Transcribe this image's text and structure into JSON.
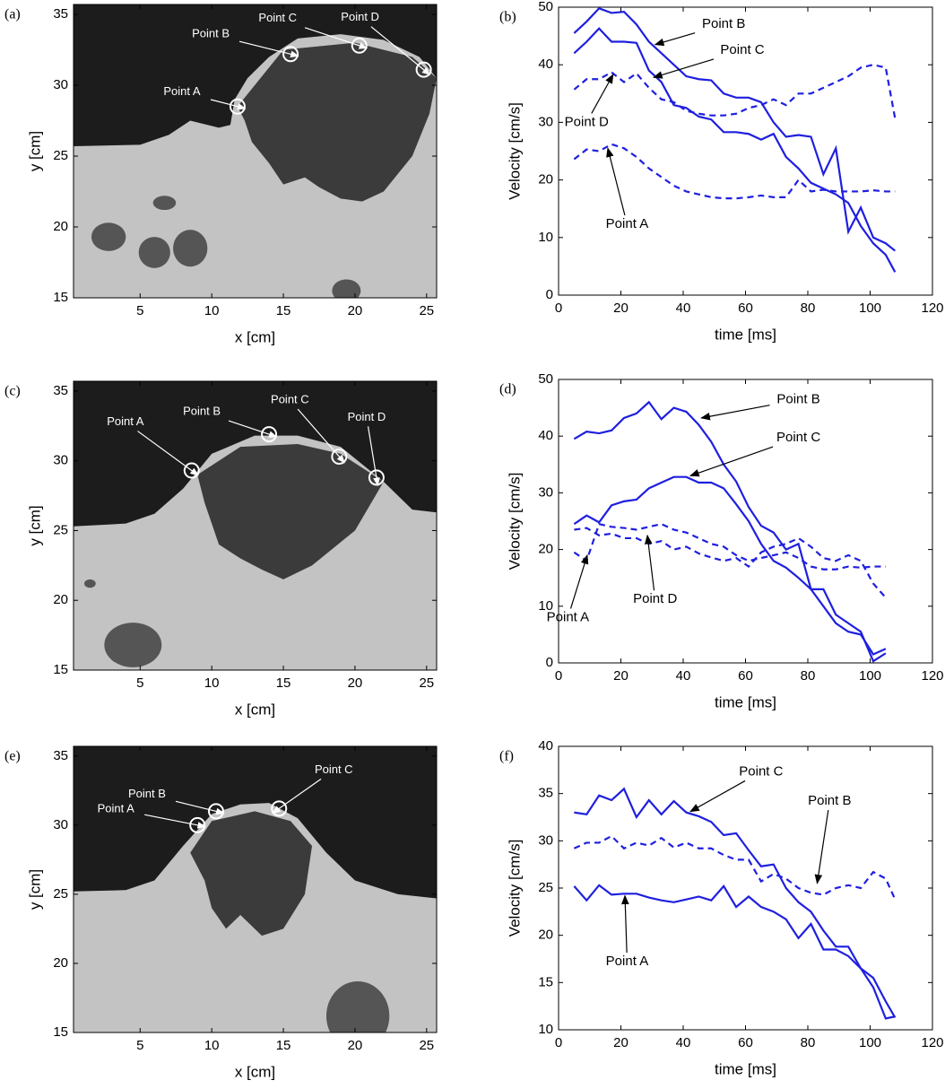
{
  "chart_data": [
    {
      "type": "image",
      "panel_label": "(a)",
      "xlabel": "x [cm]",
      "ylabel": "y [cm]",
      "xlim": [
        0.35,
        25.7
      ],
      "ylim": [
        15,
        35.7
      ],
      "xticks": [
        5,
        10,
        15,
        20,
        25
      ],
      "yticks": [
        15,
        20,
        25,
        30,
        35
      ],
      "markers": [
        {
          "label": "Point A",
          "x": 11.8,
          "y": 28.5
        },
        {
          "label": "Point B",
          "x": 15.5,
          "y": 32.2
        },
        {
          "label": "Point C",
          "x": 20.3,
          "y": 32.8
        },
        {
          "label": "Point D",
          "x": 24.8,
          "y": 31.1
        }
      ]
    },
    {
      "type": "line",
      "panel_label": "(b)",
      "xlabel": "time [ms]",
      "ylabel": "Velocity [cm/s]",
      "xlim": [
        0,
        120
      ],
      "ylim": [
        0,
        50
      ],
      "xticks": [
        0,
        20,
        40,
        60,
        80,
        100,
        120
      ],
      "yticks": [
        0,
        10,
        20,
        30,
        40,
        50
      ],
      "x": [
        5,
        9,
        13,
        17,
        21,
        25,
        29,
        33,
        37,
        41,
        45,
        49,
        53,
        57,
        61,
        65,
        69,
        73,
        77,
        81,
        85,
        89,
        93,
        97,
        101,
        105,
        108
      ],
      "series": [
        {
          "name": "Point B",
          "color": "#1f1fe0",
          "linestyle": "solid",
          "values": [
            45.5,
            47.5,
            49.8,
            49.0,
            49.2,
            47.0,
            44.0,
            42.0,
            40.0,
            38.0,
            37.5,
            37.3,
            35.0,
            34.3,
            34.3,
            33.5,
            30.0,
            27.5,
            27.8,
            27.5,
            21.0,
            25.5,
            11.0,
            15.2,
            10.0,
            9.0,
            7.7
          ]
        },
        {
          "name": "Point C",
          "color": "#1f1fe0",
          "linestyle": "solid",
          "values": [
            42,
            44,
            46.3,
            44,
            44,
            43.8,
            39,
            37,
            33,
            32.5,
            31,
            30.5,
            28.3,
            28.3,
            28,
            27,
            28,
            24,
            22,
            19.5,
            18.5,
            17.5,
            16,
            12,
            9,
            7,
            4
          ]
        },
        {
          "name": "Point D",
          "color": "#1f1fe0",
          "linestyle": "dashed",
          "values": [
            35.7,
            37.5,
            37.5,
            38.7,
            37,
            38.5,
            36,
            34,
            33.5,
            32,
            31.5,
            31.2,
            31.2,
            31.5,
            32.5,
            33,
            34,
            33,
            35,
            35,
            36,
            37,
            38,
            39.5,
            40,
            39.5,
            30.7
          ]
        },
        {
          "name": "Point A",
          "color": "#1f1fe0",
          "linestyle": "dashed",
          "values": [
            23.6,
            25.3,
            25,
            26.2,
            25.5,
            24,
            22,
            20.5,
            19,
            18,
            17.5,
            17,
            16.8,
            16.8,
            17,
            17.3,
            17,
            17,
            20,
            18,
            18.3,
            18,
            18,
            18,
            18.2,
            18,
            18
          ]
        }
      ]
    },
    {
      "type": "image",
      "panel_label": "(c)",
      "xlabel": "x [cm]",
      "ylabel": "y [cm]",
      "xlim": [
        0.35,
        25.7
      ],
      "ylim": [
        15,
        35.7
      ],
      "xticks": [
        5,
        10,
        15,
        20,
        25
      ],
      "yticks": [
        15,
        20,
        25,
        30,
        35
      ],
      "markers": [
        {
          "label": "Point A",
          "x": 8.6,
          "y": 29.3
        },
        {
          "label": "Point B",
          "x": 14,
          "y": 31.9
        },
        {
          "label": "Point C",
          "x": 18.9,
          "y": 30.3
        },
        {
          "label": "Point D",
          "x": 21.5,
          "y": 28.8
        }
      ]
    },
    {
      "type": "line",
      "panel_label": "(d)",
      "xlabel": "time [ms]",
      "ylabel": "Velocity [cm/s]",
      "xlim": [
        0,
        120
      ],
      "ylim": [
        0,
        50
      ],
      "xticks": [
        0,
        20,
        40,
        60,
        80,
        100,
        120
      ],
      "yticks": [
        0,
        10,
        20,
        30,
        40,
        50
      ],
      "x": [
        5,
        9,
        13,
        17,
        21,
        25,
        29,
        33,
        37,
        41,
        45,
        49,
        53,
        57,
        61,
        65,
        69,
        73,
        77,
        81,
        85,
        89,
        93,
        97,
        101,
        105
      ],
      "series": [
        {
          "name": "Point B",
          "color": "#1f1fe0",
          "linestyle": "solid",
          "values": [
            39.5,
            40.8,
            40.5,
            41,
            43.2,
            44,
            46,
            43,
            45,
            44.3,
            42,
            39,
            35,
            32,
            27.5,
            24.2,
            23,
            20,
            21,
            13,
            13,
            8.5,
            7,
            5.5,
            0.3,
            1.7
          ]
        },
        {
          "name": "Point C",
          "color": "#1f1fe0",
          "linestyle": "solid",
          "values": [
            24.5,
            26,
            24.8,
            27.8,
            28.5,
            28.8,
            30.8,
            31.8,
            32.8,
            32.8,
            31.8,
            31.8,
            30.8,
            28,
            25,
            21,
            18,
            16.8,
            15,
            13,
            10,
            7,
            5.5,
            5,
            1.5,
            2.5
          ]
        },
        {
          "name": "Point A",
          "color": "#1f1fe0",
          "linestyle": "dashed",
          "values": [
            19.5,
            18,
            24.5,
            24,
            23.8,
            23.5,
            24,
            24.5,
            23.5,
            23,
            22,
            21,
            20.5,
            19,
            18,
            18.5,
            19,
            19.5,
            18.5,
            17,
            16.5,
            16.5,
            17,
            16.8,
            17,
            17
          ]
        },
        {
          "name": "Point D",
          "color": "#1f1fe0",
          "linestyle": "dashed",
          "values": [
            23.5,
            23.8,
            22.5,
            22.8,
            22,
            22,
            21,
            21.5,
            20,
            20.5,
            19.3,
            18.6,
            18,
            18.5,
            17,
            19.5,
            20.5,
            21,
            22,
            20.5,
            18.5,
            18,
            19,
            18,
            14,
            11.5
          ]
        }
      ]
    },
    {
      "type": "image",
      "panel_label": "(e)",
      "xlabel": "x [cm]",
      "ylabel": "y [cm]",
      "xlim": [
        0.35,
        25.7
      ],
      "ylim": [
        15,
        35.7
      ],
      "xticks": [
        5,
        10,
        15,
        20,
        25
      ],
      "yticks": [
        15,
        20,
        25,
        30,
        35
      ],
      "markers": [
        {
          "label": "Point A",
          "x": 9,
          "y": 30
        },
        {
          "label": "Point B",
          "x": 10.3,
          "y": 31
        },
        {
          "label": "Point C",
          "x": 14.7,
          "y": 31.2
        }
      ]
    },
    {
      "type": "line",
      "panel_label": "(f)",
      "xlabel": "time [ms]",
      "ylabel": "Velocity [cm/s]",
      "xlim": [
        0,
        120
      ],
      "ylim": [
        10,
        40
      ],
      "xticks": [
        0,
        20,
        40,
        60,
        80,
        100,
        120
      ],
      "yticks": [
        10,
        15,
        20,
        25,
        30,
        35,
        40
      ],
      "x": [
        5,
        9,
        13,
        17,
        21,
        25,
        29,
        33,
        37,
        41,
        45,
        49,
        53,
        57,
        61,
        65,
        69,
        73,
        77,
        81,
        85,
        89,
        93,
        97,
        101,
        105,
        108
      ],
      "series": [
        {
          "name": "Point C",
          "color": "#1f1fe0",
          "linestyle": "solid",
          "values": [
            33,
            32.8,
            34.8,
            34.3,
            35.5,
            32.5,
            34.3,
            32.8,
            34.2,
            33,
            32.6,
            32,
            30.6,
            30.8,
            29,
            27.3,
            27.5,
            25,
            23.5,
            22.5,
            20.5,
            18.8,
            18.8,
            16.5,
            15.5,
            13,
            11.3
          ]
        },
        {
          "name": "Point B",
          "color": "#1f1fe0",
          "linestyle": "dashed",
          "values": [
            29.2,
            29.8,
            29.8,
            30.5,
            29.2,
            29.8,
            29.5,
            30.3,
            29.3,
            29.8,
            29.2,
            29.2,
            28.5,
            28,
            28,
            25.7,
            26.5,
            26,
            25,
            24.5,
            24.3,
            25,
            25.3,
            25,
            26.7,
            26,
            23.8
          ]
        },
        {
          "name": "Point A",
          "color": "#1f1fe0",
          "linestyle": "solid",
          "values": [
            25.2,
            23.7,
            25.3,
            24.3,
            24.4,
            24.4,
            24,
            23.7,
            23.5,
            23.8,
            24.1,
            23.7,
            25.2,
            23,
            24.1,
            23,
            22.5,
            21.7,
            19.7,
            21.2,
            18.5,
            18.5,
            17.8,
            16.5,
            14.5,
            11.2,
            11.4
          ]
        }
      ]
    }
  ]
}
